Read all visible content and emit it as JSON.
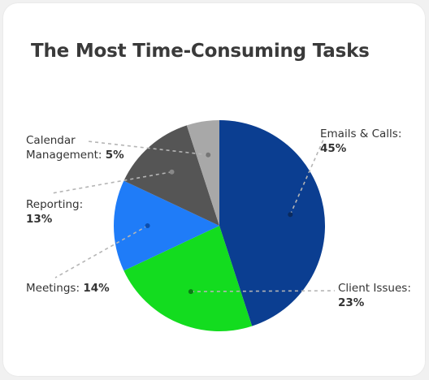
{
  "chart_data": {
    "type": "pie",
    "title": "The Most Time-Consuming Tasks",
    "slices": [
      {
        "name": "Emails & Calls",
        "value": 45,
        "label_line1": "Emails & Calls:",
        "label_pct": "45%",
        "color": "#0b3e91"
      },
      {
        "name": "Client Issues",
        "value": 23,
        "label_line1": "Client Issues:",
        "label_pct": "23%",
        "color": "#13dc1f"
      },
      {
        "name": "Meetings",
        "value": 14,
        "label_line1": "Meetings:",
        "label_pct": "14%",
        "color": "#1f7cf8"
      },
      {
        "name": "Reporting",
        "value": 13,
        "label_line1": "Reporting:",
        "label_pct": "13%",
        "color": "#555555"
      },
      {
        "name": "Calendar Management",
        "value": 5,
        "label_line1": "Calendar",
        "label_line2": "Management:",
        "label_pct": "5%",
        "color": "#a8a8a8"
      }
    ],
    "leader_line_color": "#b5b5b5"
  }
}
